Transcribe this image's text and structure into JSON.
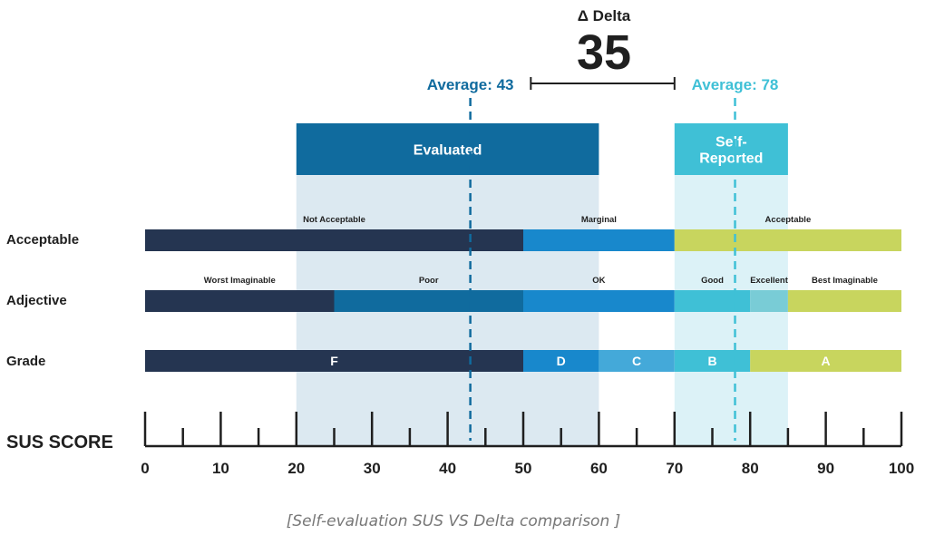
{
  "chart_data": {
    "type": "bar",
    "axis": {
      "label": "SUS SCORE",
      "min": 0,
      "max": 100,
      "major_step": 10,
      "minor_step": 5
    },
    "rows": [
      {
        "label": "Acceptable",
        "segments": [
          {
            "label": "Not Acceptable",
            "from": 0,
            "to": 50,
            "color": "#253551",
            "label_center": 25,
            "label_pos": "above"
          },
          {
            "label": "Marginal",
            "from": 50,
            "to": 70,
            "color": "#1888cc",
            "label_center": 60,
            "label_pos": "above"
          },
          {
            "label": "Acceptable",
            "from": 70,
            "to": 100,
            "color": "#c8d55e",
            "label_center": 85,
            "label_pos": "above"
          }
        ]
      },
      {
        "label": "Adjective",
        "segments": [
          {
            "label": "Worst Imaginable",
            "from": 0,
            "to": 25,
            "color": "#253551",
            "label_center": 12.5,
            "label_pos": "above"
          },
          {
            "label": "Poor",
            "from": 25,
            "to": 50,
            "color": "#106b9e",
            "label_center": 37.5,
            "label_pos": "above"
          },
          {
            "label": "OK",
            "from": 50,
            "to": 70,
            "color": "#1888cc",
            "label_center": 60,
            "label_pos": "above"
          },
          {
            "label": "Good",
            "from": 70,
            "to": 80,
            "color": "#3fc0d6",
            "label_center": 75,
            "label_pos": "above"
          },
          {
            "label": "Excellent",
            "from": 80,
            "to": 85,
            "color": "#79ccd6",
            "label_center": 82.5,
            "label_pos": "above"
          },
          {
            "label": "Best Imaginable",
            "from": 85,
            "to": 100,
            "color": "#c8d55e",
            "label_center": 92.5,
            "label_pos": "above"
          }
        ]
      },
      {
        "label": "Grade",
        "segments": [
          {
            "label": "F",
            "from": 0,
            "to": 50,
            "color": "#253551",
            "label_pos": "inside"
          },
          {
            "label": "D",
            "from": 50,
            "to": 60,
            "color": "#1888cc",
            "label_pos": "inside"
          },
          {
            "label": "C",
            "from": 60,
            "to": 70,
            "color": "#44a9d9",
            "label_pos": "inside"
          },
          {
            "label": "B",
            "from": 70,
            "to": 80,
            "color": "#3fc0d6",
            "label_pos": "inside"
          },
          {
            "label": "A",
            "from": 80,
            "to": 100,
            "color": "#c8d55e",
            "label_pos": "inside"
          }
        ]
      }
    ],
    "ranges": [
      {
        "label": "Evaluated",
        "from": 20,
        "to": 60,
        "header_color": "#106b9e",
        "shade_color": "#dce9f1"
      },
      {
        "label": "Self-\nReported",
        "from": 70,
        "to": 85,
        "header_color": "#3fc0d6",
        "shade_color": "#dcf2f7"
      }
    ],
    "averages": [
      {
        "label": "Average: 43",
        "value": 43,
        "color": "#106b9e"
      },
      {
        "label": "Average: 78",
        "value": 78,
        "color": "#3fc0d6"
      }
    ],
    "delta": {
      "label": "Δ Delta",
      "value": "35",
      "from": 51,
      "to": 70
    },
    "caption": "[Self-evaluation SUS VS Delta comparison ]",
    "colors": {
      "text": "#1f1f1f",
      "axis": "#1f1f1f",
      "caption": "#777777"
    }
  }
}
